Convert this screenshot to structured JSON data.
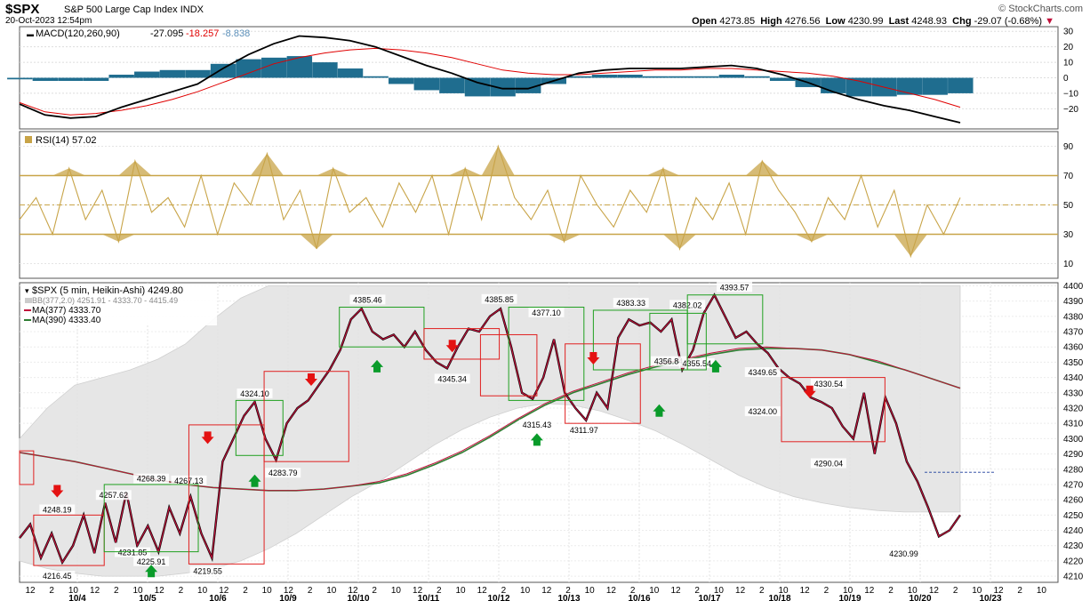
{
  "header": {
    "symbol": "$SPX",
    "name": "S&P 500 Large Cap Index",
    "exchange": "INDX",
    "datetime": "20-Oct-2023 12:54pm",
    "source": "© StockCharts.com",
    "open_label": "Open",
    "open": "4273.85",
    "high_label": "High",
    "high": "4276.56",
    "low_label": "Low",
    "low": "4230.99",
    "last_label": "Last",
    "last": "4248.93",
    "chg_label": "Chg",
    "chg": "-29.07 (-0.68%)"
  },
  "colors": {
    "macd_line": "#000000",
    "macd_signal": "#e00000",
    "macd_hist": "#1f6d8f",
    "rsi": "#c8a448",
    "price": "#c0103a",
    "ma377": "#c0103a",
    "ma390": "#2e7d32",
    "bb_band": "#e6e6e6",
    "buy_arrow": "#0a9b2a",
    "sell_arrow": "#e41212",
    "box_red": "#e02020",
    "box_green": "#20a020"
  },
  "chart_data": [
    {
      "type": "line",
      "panel": "macd",
      "legend": "MACD(120,260,90)",
      "legend_values": [
        "-27.095",
        "-18.257",
        "-8.838"
      ],
      "yticks": [
        "30",
        "20",
        "10",
        "0",
        "-10",
        "-20"
      ],
      "ylim": [
        -33,
        33
      ],
      "series": [
        {
          "role": "macd",
          "values": [
            -17,
            -24,
            -26,
            -25,
            -19,
            -14,
            -9,
            -4,
            6,
            15,
            22,
            27,
            26,
            24,
            20,
            14,
            8,
            3,
            -3,
            -7,
            -7,
            -2,
            3,
            5,
            6,
            6,
            6,
            7,
            8,
            6,
            2,
            -3,
            -9,
            -14,
            -18,
            -21,
            -25,
            -29
          ]
        },
        {
          "role": "signal",
          "values": [
            -16,
            -22,
            -24,
            -23,
            -21,
            -18,
            -14,
            -9,
            -3,
            3,
            9,
            13,
            16,
            18,
            19,
            18,
            16,
            13,
            9,
            5,
            3,
            2,
            2,
            3,
            4,
            5,
            5,
            6,
            6,
            5,
            4,
            3,
            1,
            -2,
            -6,
            -10,
            -14,
            -19
          ]
        },
        {
          "role": "histogram",
          "values": [
            -1,
            -2,
            -2,
            -2,
            2,
            4,
            5,
            5,
            9,
            12,
            13,
            14,
            10,
            6,
            1,
            -4,
            -8,
            -10,
            -12,
            -12,
            -10,
            -4,
            1,
            2,
            2,
            1,
            1,
            1,
            2,
            1,
            -2,
            -6,
            -10,
            -12,
            -12,
            -11,
            -11,
            -10
          ]
        }
      ]
    },
    {
      "type": "line",
      "panel": "rsi",
      "legend": "RSI(14) 57.02",
      "yticks": [
        "90",
        "70",
        "50",
        "30",
        "10"
      ],
      "ylim": [
        0,
        100
      ],
      "reference_lines": [
        70,
        50,
        30
      ],
      "values": [
        40,
        55,
        30,
        75,
        40,
        60,
        25,
        80,
        45,
        55,
        35,
        70,
        30,
        65,
        50,
        85,
        40,
        60,
        20,
        75,
        45,
        55,
        35,
        65,
        45,
        70,
        30,
        75,
        40,
        90,
        55,
        40,
        60,
        25,
        70,
        50,
        35,
        60,
        45,
        75,
        20,
        55,
        40,
        65,
        30,
        80,
        60,
        45,
        25,
        55,
        40,
        70,
        35,
        60,
        15,
        50,
        30,
        55
      ]
    },
    {
      "type": "line",
      "panel": "price",
      "legend_main": "$SPX (5 min, Heikin-Ashi) 4249.80",
      "legend_bb": "BB(377,2.0) 4251.91 - 4333.70 - 4415.49",
      "legend_ma1": "MA(377) 4333.70",
      "legend_ma2": "MA(390) 4333.40",
      "yticks": [
        "4400",
        "4390",
        "4380",
        "4370",
        "4360",
        "4350",
        "4340",
        "4330",
        "4320",
        "4310",
        "4300",
        "4290",
        "4280",
        "4270",
        "4260",
        "4250",
        "4240",
        "4230",
        "4220",
        "4210"
      ],
      "ylim": [
        4206,
        4402
      ],
      "xticks": [
        "12",
        "2",
        "10",
        "12",
        "2",
        "10",
        "12",
        "2",
        "10",
        "12",
        "2",
        "10",
        "12",
        "2",
        "10",
        "12",
        "2",
        "10",
        "12",
        "2",
        "10",
        "12",
        "2",
        "10",
        "12",
        "2",
        "10",
        "12",
        "2",
        "10",
        "12",
        "2",
        "10",
        "12",
        "2",
        "10",
        "12",
        "2",
        "10",
        "12",
        "2",
        "10",
        "12",
        "2",
        "10",
        "12",
        "2",
        "10",
        "12",
        "2"
      ],
      "date_labels": [
        "10/4",
        "10/5",
        "10/6",
        "10/9",
        "10/10",
        "10/11",
        "10/12",
        "10/13",
        "10/16",
        "10/17",
        "10/18",
        "10/19",
        "10/20",
        "10/23"
      ],
      "price": [
        4235,
        4244,
        4222,
        4238,
        4219,
        4230,
        4250,
        4225,
        4258,
        4232,
        4265,
        4230,
        4243,
        4226,
        4255,
        4238,
        4262,
        4238,
        4222,
        4285,
        4300,
        4315,
        4324,
        4300,
        4286,
        4310,
        4320,
        4325,
        4335,
        4345,
        4358,
        4378,
        4385,
        4370,
        4365,
        4368,
        4360,
        4370,
        4358,
        4350,
        4346,
        4360,
        4372,
        4370,
        4380,
        4385,
        4360,
        4330,
        4326,
        4340,
        4365,
        4330,
        4320,
        4312,
        4330,
        4320,
        4366,
        4378,
        4374,
        4376,
        4370,
        4378,
        4345,
        4358,
        4382,
        4394,
        4380,
        4366,
        4370,
        4362,
        4356,
        4346,
        4340,
        4336,
        4327,
        4324,
        4320,
        4308,
        4300,
        4330,
        4290,
        4327,
        4310,
        4285,
        4272,
        4255,
        4236,
        4240,
        4250
      ],
      "ma377": [
        4291,
        4288,
        4285,
        4281,
        4277,
        4273,
        4270,
        4268,
        4267,
        4266,
        4266,
        4267,
        4269,
        4272,
        4277,
        4284,
        4292,
        4302,
        4313,
        4323,
        4331,
        4337,
        4343,
        4348,
        4352,
        4356,
        4359,
        4360,
        4359,
        4358,
        4355,
        4351,
        4345,
        4339,
        4333
      ],
      "ma390": [
        4291,
        4288,
        4285,
        4281,
        4277,
        4273,
        4270,
        4268,
        4267,
        4266,
        4266,
        4267,
        4269,
        4271,
        4276,
        4283,
        4291,
        4301,
        4312,
        4322,
        4330,
        4336,
        4342,
        4347,
        4351,
        4355,
        4358,
        4359,
        4359,
        4358,
        4355,
        4350,
        4345,
        4339,
        4333
      ],
      "bb_upper": [
        4300,
        4320,
        4335,
        4340,
        4345,
        4352,
        4362,
        4378,
        4392,
        4400,
        4400,
        4400,
        4400,
        4400,
        4400,
        4400,
        4400,
        4400,
        4400,
        4400,
        4400,
        4400,
        4400,
        4400,
        4400,
        4400,
        4400,
        4400,
        4400,
        4400,
        4400,
        4400,
        4400,
        4400,
        4400
      ],
      "bb_lower": [
        4220,
        4215,
        4212,
        4210,
        4210,
        4210,
        4212,
        4215,
        4220,
        4228,
        4238,
        4250,
        4262,
        4272,
        4284,
        4296,
        4306,
        4314,
        4320,
        4323,
        4322,
        4318,
        4312,
        4305,
        4296,
        4286,
        4276,
        4268,
        4262,
        4258,
        4255,
        4253,
        4252,
        4252,
        4252
      ],
      "annotations": [
        "4248.19",
        "4216.45",
        "4257.62",
        "4231.85",
        "4225.91",
        "4268.39",
        "4267.13",
        "4219.55",
        "4324.10",
        "4283.79",
        "4385.46",
        "4345.34",
        "4385.85",
        "4377.10",
        "4315.43",
        "4311.97",
        "4383.33",
        "4382.02",
        "4356.84",
        "4355.54",
        "4393.57",
        "4349.65",
        "4324.00",
        "4330.54",
        "4290.04",
        "4230.99"
      ]
    }
  ]
}
